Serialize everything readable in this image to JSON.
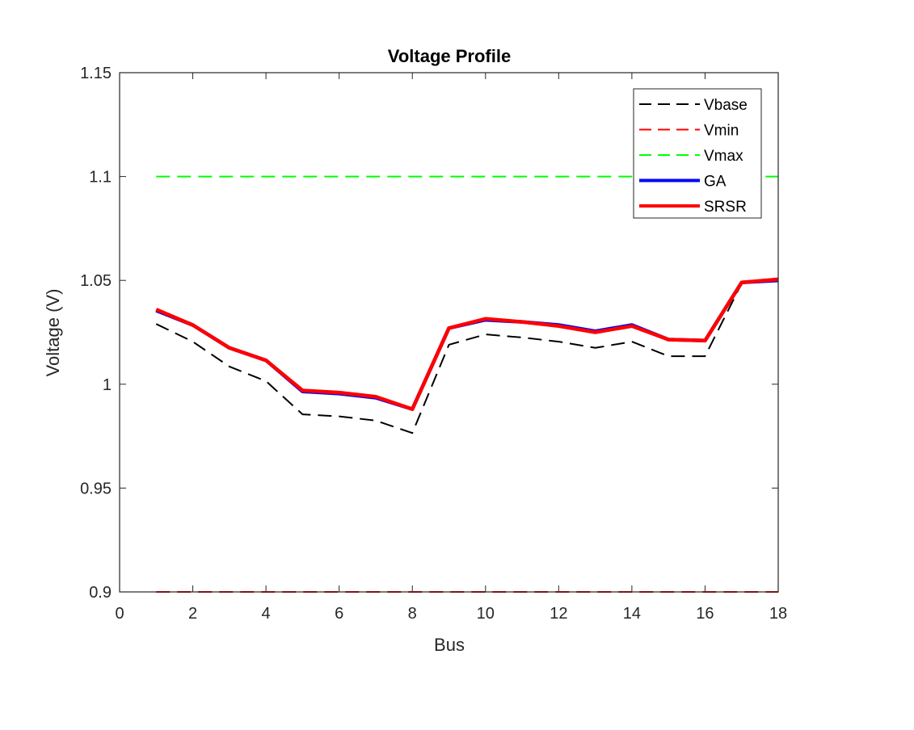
{
  "chart_data": {
    "type": "line",
    "title": "Voltage Profile",
    "xlabel": "Bus",
    "ylabel": "Voltage (V)",
    "xlim": [
      0,
      18
    ],
    "ylim": [
      0.9,
      1.15
    ],
    "xticks": [
      0,
      2,
      4,
      6,
      8,
      10,
      12,
      14,
      16,
      18
    ],
    "yticks": [
      0.9,
      0.95,
      1.0,
      1.05,
      1.1,
      1.15
    ],
    "ytick_labels": [
      "0.9",
      "0.95",
      "1",
      "1.05",
      "1.1",
      "1.15"
    ],
    "legend_position": "top-right",
    "grid": false,
    "series": [
      {
        "name": "Vbase",
        "style": "dashed",
        "color": "#000000",
        "x": [
          1,
          2,
          3,
          4,
          5,
          6,
          7,
          8,
          9,
          10,
          11,
          12,
          13,
          14,
          15,
          16,
          17,
          18
        ],
        "values": [
          1.029,
          1.0205,
          1.0085,
          1.0015,
          0.9855,
          0.9845,
          0.9825,
          0.9765,
          1.019,
          1.024,
          1.0225,
          1.0205,
          1.0175,
          1.0205,
          1.0135,
          1.0135,
          1.0485,
          1.05
        ]
      },
      {
        "name": "Vmin",
        "style": "dashed",
        "color": "#ff0000",
        "x": [
          1,
          18
        ],
        "values": [
          0.9,
          0.9
        ]
      },
      {
        "name": "Vmax",
        "style": "dashed",
        "color": "#00ff00",
        "x": [
          1,
          18
        ],
        "values": [
          1.1,
          1.1
        ]
      },
      {
        "name": "GA",
        "style": "solid",
        "color": "#0000ff",
        "x": [
          1,
          2,
          3,
          4,
          5,
          6,
          7,
          8,
          9,
          10,
          11,
          12,
          13,
          14,
          15,
          16,
          17,
          18
        ],
        "values": [
          1.0355,
          1.0285,
          1.0175,
          1.0115,
          0.9965,
          0.9955,
          0.9935,
          0.988,
          1.027,
          1.031,
          1.03,
          1.0285,
          1.0255,
          1.0285,
          1.0215,
          1.021,
          1.049,
          1.05
        ]
      },
      {
        "name": "SRSR",
        "style": "solid",
        "color": "#ff0000",
        "x": [
          1,
          2,
          3,
          4,
          5,
          6,
          7,
          8,
          9,
          10,
          11,
          12,
          13,
          14,
          15,
          16,
          17,
          18
        ],
        "values": [
          1.036,
          1.0285,
          1.0175,
          1.0115,
          0.997,
          0.996,
          0.994,
          0.988,
          1.027,
          1.0315,
          1.03,
          1.028,
          1.025,
          1.028,
          1.0215,
          1.021,
          1.049,
          1.0505
        ]
      }
    ]
  }
}
